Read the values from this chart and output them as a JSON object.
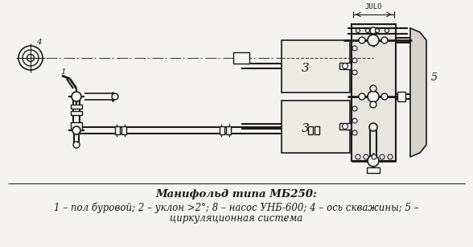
{
  "title": "Манифольд типа МБ250:",
  "caption_line1": "1 – пол буровой; 2 – уклон >2°; 8 – насос УНБ-600; 4 – ось скважины; 5 –",
  "caption_line2": "циркуляционная система",
  "bg_color": "#f5f3ef",
  "line_color": "#1a1a1a",
  "fig_width": 5.88,
  "fig_height": 3.07,
  "dpi": 100
}
